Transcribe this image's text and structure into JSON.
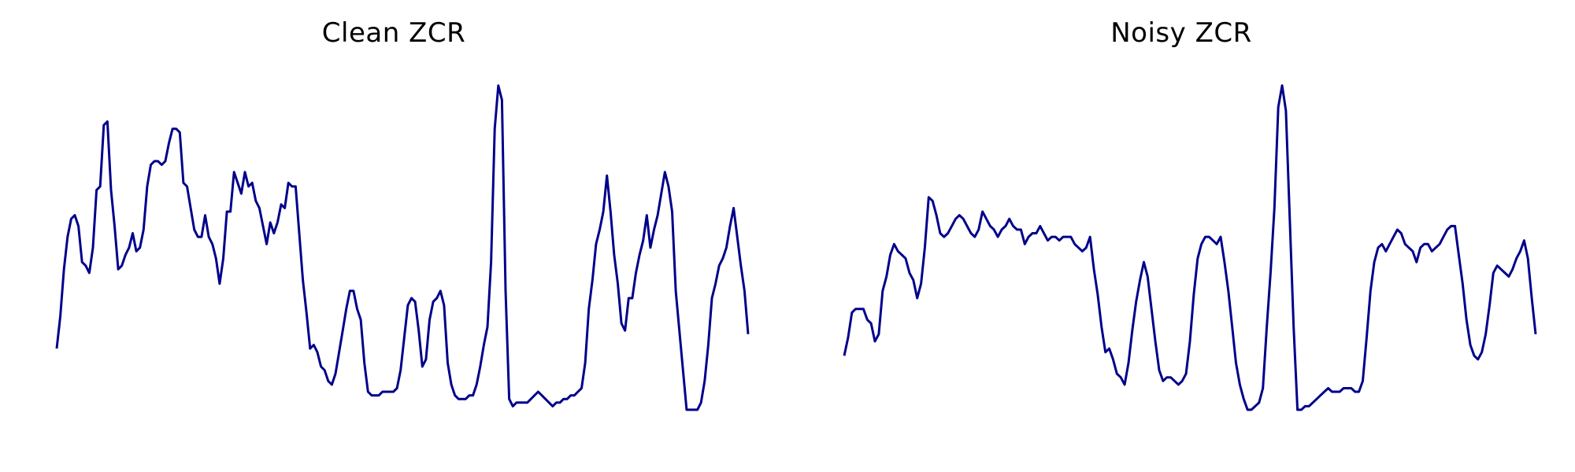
{
  "chart_data": [
    {
      "type": "line",
      "title": "Clean ZCR",
      "xlabel": "",
      "ylabel": "",
      "grid": false,
      "line_color": "#00008B",
      "y": [
        0.24,
        0.33,
        0.46,
        0.55,
        0.6,
        0.61,
        0.58,
        0.48,
        0.47,
        0.45,
        0.52,
        0.68,
        0.69,
        0.86,
        0.87,
        0.68,
        0.58,
        0.46,
        0.47,
        0.5,
        0.52,
        0.56,
        0.51,
        0.52,
        0.57,
        0.69,
        0.75,
        0.76,
        0.76,
        0.75,
        0.76,
        0.81,
        0.85,
        0.85,
        0.84,
        0.7,
        0.69,
        0.63,
        0.57,
        0.55,
        0.55,
        0.61,
        0.55,
        0.53,
        0.49,
        0.42,
        0.49,
        0.62,
        0.62,
        0.73,
        0.7,
        0.67,
        0.73,
        0.69,
        0.7,
        0.65,
        0.63,
        0.58,
        0.53,
        0.59,
        0.56,
        0.59,
        0.64,
        0.63,
        0.7,
        0.69,
        0.69,
        0.56,
        0.43,
        0.34,
        0.24,
        0.25,
        0.23,
        0.19,
        0.18,
        0.15,
        0.14,
        0.17,
        0.23,
        0.29,
        0.35,
        0.4,
        0.4,
        0.35,
        0.32,
        0.2,
        0.12,
        0.11,
        0.11,
        0.11,
        0.12,
        0.12,
        0.12,
        0.12,
        0.13,
        0.18,
        0.27,
        0.36,
        0.38,
        0.37,
        0.29,
        0.19,
        0.21,
        0.32,
        0.37,
        0.38,
        0.4,
        0.36,
        0.2,
        0.14,
        0.11,
        0.1,
        0.1,
        0.1,
        0.11,
        0.11,
        0.14,
        0.19,
        0.25,
        0.3,
        0.48,
        0.85,
        0.97,
        0.93,
        0.4,
        0.1,
        0.08,
        0.09,
        0.09,
        0.09,
        0.09,
        0.1,
        0.11,
        0.12,
        0.11,
        0.1,
        0.09,
        0.08,
        0.09,
        0.09,
        0.1,
        0.1,
        0.11,
        0.11,
        0.12,
        0.13,
        0.2,
        0.35,
        0.43,
        0.53,
        0.57,
        0.62,
        0.72,
        0.62,
        0.5,
        0.42,
        0.31,
        0.29,
        0.38,
        0.38,
        0.45,
        0.5,
        0.54,
        0.61,
        0.52,
        0.57,
        0.61,
        0.67,
        0.73,
        0.69,
        0.62,
        0.4,
        0.29,
        0.18,
        0.07,
        0.07,
        0.07,
        0.07,
        0.09,
        0.15,
        0.25,
        0.38,
        0.42,
        0.47,
        0.49,
        0.52,
        0.58,
        0.63,
        0.55,
        0.47,
        0.4,
        0.28
      ]
    },
    {
      "type": "line",
      "title": "Noisy ZCR",
      "xlabel": "",
      "ylabel": "",
      "grid": false,
      "line_color": "#00008B",
      "y": [
        0.22,
        0.27,
        0.34,
        0.35,
        0.35,
        0.35,
        0.32,
        0.31,
        0.26,
        0.28,
        0.4,
        0.44,
        0.5,
        0.53,
        0.51,
        0.5,
        0.49,
        0.45,
        0.43,
        0.38,
        0.42,
        0.52,
        0.66,
        0.65,
        0.61,
        0.56,
        0.55,
        0.56,
        0.58,
        0.6,
        0.61,
        0.6,
        0.58,
        0.56,
        0.55,
        0.57,
        0.62,
        0.6,
        0.58,
        0.57,
        0.55,
        0.57,
        0.58,
        0.6,
        0.58,
        0.57,
        0.57,
        0.53,
        0.55,
        0.56,
        0.56,
        0.58,
        0.56,
        0.54,
        0.55,
        0.55,
        0.54,
        0.55,
        0.55,
        0.55,
        0.53,
        0.52,
        0.51,
        0.52,
        0.55,
        0.46,
        0.39,
        0.3,
        0.23,
        0.24,
        0.21,
        0.17,
        0.16,
        0.14,
        0.2,
        0.29,
        0.37,
        0.43,
        0.48,
        0.44,
        0.35,
        0.26,
        0.18,
        0.15,
        0.16,
        0.16,
        0.15,
        0.14,
        0.15,
        0.17,
        0.26,
        0.39,
        0.49,
        0.53,
        0.55,
        0.55,
        0.54,
        0.53,
        0.55,
        0.48,
        0.4,
        0.3,
        0.2,
        0.14,
        0.1,
        0.07,
        0.07,
        0.08,
        0.09,
        0.13,
        0.3,
        0.45,
        0.63,
        0.91,
        0.97,
        0.9,
        0.6,
        0.3,
        0.07,
        0.07,
        0.08,
        0.08,
        0.09,
        0.1,
        0.11,
        0.12,
        0.13,
        0.12,
        0.12,
        0.12,
        0.13,
        0.13,
        0.13,
        0.12,
        0.12,
        0.15,
        0.27,
        0.4,
        0.48,
        0.52,
        0.53,
        0.51,
        0.53,
        0.55,
        0.57,
        0.56,
        0.53,
        0.52,
        0.51,
        0.48,
        0.52,
        0.53,
        0.53,
        0.51,
        0.52,
        0.53,
        0.55,
        0.57,
        0.58,
        0.58,
        0.5,
        0.42,
        0.32,
        0.25,
        0.22,
        0.21,
        0.23,
        0.28,
        0.36,
        0.45,
        0.47,
        0.46,
        0.45,
        0.44,
        0.46,
        0.49,
        0.51,
        0.54,
        0.49,
        0.38,
        0.28
      ]
    }
  ]
}
